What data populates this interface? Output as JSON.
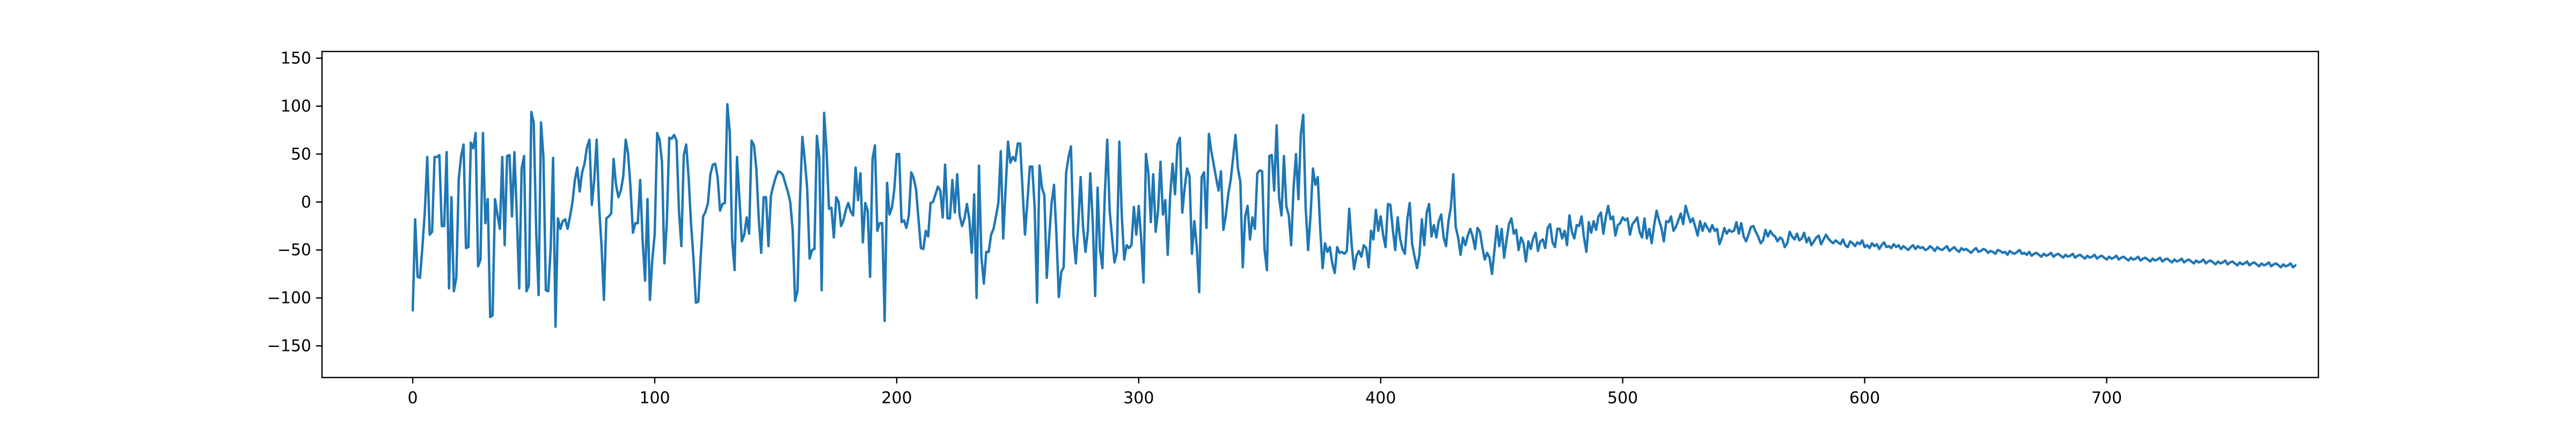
{
  "chart_data": {
    "type": "line",
    "title": "",
    "xlabel": "",
    "ylabel": "",
    "xlim": [
      -37.5,
      787.5
    ],
    "ylim": [
      -183,
      157
    ],
    "x_ticks": [
      0,
      100,
      200,
      300,
      400,
      500,
      600,
      700
    ],
    "y_ticks": [
      -150,
      -100,
      -50,
      0,
      50,
      100,
      150
    ],
    "x_tick_labels": [
      "0",
      "100",
      "200",
      "300",
      "400",
      "500",
      "600",
      "700"
    ],
    "y_tick_labels": [
      "−150",
      "−100",
      "−50",
      "0",
      "50",
      "100",
      "150"
    ],
    "grid": false,
    "legend": "none",
    "colors": {
      "series": "#1f77b4",
      "axes": "#000000",
      "background": "#ffffff"
    },
    "series": [
      {
        "values": [
          -113,
          -18,
          -78,
          -79,
          -47,
          -10,
          47,
          -34,
          -31,
          47,
          47,
          49,
          -25,
          -25,
          52,
          -90,
          5,
          -93,
          -79,
          24,
          48,
          60,
          -48,
          -47,
          62,
          56,
          72,
          -67,
          -60,
          72,
          -22,
          3,
          -120,
          -118,
          3,
          -13,
          -28,
          47,
          -45,
          48,
          49,
          -15,
          52,
          -13,
          -90,
          35,
          48,
          -93,
          -87,
          94,
          83,
          -30,
          -97,
          83,
          47,
          -92,
          -93,
          -48,
          46,
          -130,
          -17,
          -28,
          -20,
          -18,
          -28,
          -15,
          0,
          23,
          36,
          11,
          31,
          40,
          57,
          65,
          -3,
          23,
          65,
          -4,
          -45,
          -102,
          -17,
          -15,
          -12,
          45,
          18,
          5,
          12,
          27,
          65,
          50,
          15,
          -32,
          -22,
          -22,
          23,
          -41,
          -82,
          3,
          -102,
          -60,
          -33,
          72,
          65,
          42,
          -64,
          -22,
          67,
          66,
          70,
          64,
          -9,
          -46,
          49,
          60,
          26,
          -22,
          -58,
          -105,
          -104,
          -57,
          -15,
          -10,
          -1,
          29,
          39,
          40,
          26,
          -9,
          -2,
          -1,
          102,
          73,
          -40,
          -71,
          47,
          4,
          -41,
          -34,
          -16,
          -33,
          64,
          59,
          34,
          -18,
          -53,
          5,
          5,
          -46,
          6,
          17,
          26,
          32,
          31,
          28,
          19,
          11,
          0,
          -29,
          -103,
          -93,
          1,
          68,
          44,
          14,
          -59,
          -50,
          -49,
          69,
          46,
          -92,
          93,
          55,
          -7,
          -6,
          -37,
          5,
          0,
          -25,
          -19,
          -8,
          -1,
          -10,
          -14,
          36,
          2,
          30,
          -42,
          -1,
          -9,
          -78,
          45,
          59,
          -30,
          -22,
          -22,
          -124,
          20,
          -13,
          -6,
          13,
          50,
          50,
          -21,
          -19,
          -27,
          -14,
          31,
          25,
          13,
          -18,
          -48,
          -49,
          -30,
          -36,
          -1,
          0,
          8,
          16,
          12,
          -16,
          39,
          -17,
          -17,
          23,
          -11,
          29,
          -14,
          -25,
          -17,
          -2,
          -18,
          -53,
          8,
          -100,
          38,
          -57,
          -85,
          -52,
          -52,
          -34,
          -28,
          -15,
          -1,
          53,
          -38,
          14,
          63,
          41,
          47,
          43,
          61,
          61,
          13,
          -34,
          0,
          37,
          37,
          -5,
          -105,
          38,
          15,
          7,
          -79,
          -37,
          -1,
          18,
          -34,
          -99,
          -73,
          -68,
          30,
          47,
          58,
          -35,
          -64,
          -24,
          26,
          -26,
          -52,
          -30,
          30,
          -20,
          -98,
          15,
          -50,
          -69,
          9,
          65,
          -9,
          -37,
          -63,
          -52,
          63,
          -14,
          -60,
          -45,
          -48,
          -45,
          -5,
          -34,
          -4,
          -37,
          -84,
          50,
          30,
          -21,
          29,
          -31,
          -9,
          42,
          -13,
          2,
          -55,
          6,
          40,
          8,
          60,
          67,
          -11,
          15,
          35,
          27,
          -54,
          -20,
          -47,
          -94,
          26,
          31,
          -27,
          71,
          53,
          39,
          25,
          12,
          32,
          -29,
          -14,
          8,
          23,
          46,
          70,
          35,
          21,
          -68,
          -15,
          -4,
          -39,
          -16,
          -28,
          30,
          33,
          32,
          -50,
          -71,
          48,
          49,
          12,
          80,
          5,
          -14,
          48,
          -4,
          -14,
          -45,
          15,
          50,
          3,
          71,
          91,
          -6,
          -50,
          -14,
          35,
          18,
          26,
          -28,
          -69,
          -43,
          -52,
          -47,
          -64,
          -74,
          -47,
          -53,
          -52,
          -54,
          -51,
          -7,
          -44,
          -70,
          -56,
          -51,
          -57,
          -45,
          -48,
          -68,
          -30,
          -39,
          -8,
          -30,
          -15,
          -34,
          -47,
          -2,
          -3,
          -29,
          -50,
          -16,
          -38,
          -49,
          -54,
          -18,
          -1,
          -44,
          -57,
          -69,
          -55,
          -18,
          -45,
          -11,
          -2,
          -36,
          -24,
          -37,
          -20,
          -13,
          -37,
          -46,
          -20,
          -5,
          29,
          -26,
          -37,
          -55,
          -37,
          -45,
          -35,
          -28,
          -36,
          -49,
          -27,
          -31,
          -47,
          -60,
          -53,
          -58,
          -75,
          -50,
          -25,
          -46,
          -28,
          -58,
          -40,
          -23,
          -17,
          -33,
          -29,
          -50,
          -37,
          -43,
          -62,
          -41,
          -49,
          -38,
          -32,
          -51,
          -41,
          -39,
          -48,
          -27,
          -23,
          -42,
          -47,
          -28,
          -28,
          -38,
          -30,
          -45,
          -14,
          -31,
          -38,
          -24,
          -25,
          -15,
          -37,
          -52,
          -21,
          -32,
          -20,
          -29,
          -15,
          -11,
          -33,
          -16,
          -4,
          -18,
          -15,
          -35,
          -24,
          -22,
          -16,
          -19,
          -17,
          -34,
          -23,
          -20,
          -16,
          -31,
          -37,
          -17,
          -38,
          -28,
          -43,
          -24,
          -9,
          -19,
          -27,
          -41,
          -20,
          -21,
          -15,
          -30,
          -26,
          -19,
          -12,
          -23,
          -4,
          -13,
          -21,
          -17,
          -26,
          -35,
          -20,
          -30,
          -22,
          -27,
          -31,
          -24,
          -30,
          -28,
          -44,
          -37,
          -27,
          -33,
          -29,
          -31,
          -30,
          -21,
          -33,
          -22,
          -36,
          -41,
          -34,
          -26,
          -25,
          -31,
          -36,
          -43,
          -40,
          -29,
          -36,
          -30,
          -34,
          -36,
          -41,
          -37,
          -39,
          -47,
          -43,
          -31,
          -36,
          -39,
          -33,
          -40,
          -38,
          -32,
          -42,
          -37,
          -45,
          -41,
          -37,
          -35,
          -44,
          -39,
          -34,
          -38,
          -41,
          -43,
          -40,
          -42,
          -44,
          -39,
          -45,
          -47,
          -41,
          -43,
          -46,
          -42,
          -44,
          -40,
          -47,
          -45,
          -48,
          -43,
          -46,
          -44,
          -49,
          -45,
          -42,
          -47,
          -46,
          -48,
          -44,
          -47,
          -45,
          -49,
          -46,
          -48,
          -50,
          -47,
          -45,
          -49,
          -46,
          -48,
          -47,
          -50,
          -49,
          -46,
          -48,
          -51,
          -47,
          -49,
          -50,
          -48,
          -46,
          -51,
          -49,
          -47,
          -50,
          -52,
          -48,
          -50,
          -49,
          -51,
          -53,
          -50,
          -48,
          -52,
          -51,
          -49,
          -50,
          -53,
          -51,
          -52,
          -54,
          -50,
          -51,
          -53,
          -52,
          -55,
          -51,
          -53,
          -54,
          -52,
          -50,
          -54,
          -53,
          -55,
          -52,
          -56,
          -54,
          -53,
          -55,
          -57,
          -54,
          -56,
          -55,
          -53,
          -57,
          -55,
          -54,
          -56,
          -58,
          -55,
          -57,
          -56,
          -54,
          -58,
          -56,
          -55,
          -57,
          -59,
          -56,
          -58,
          -57,
          -55,
          -59,
          -57,
          -56,
          -58,
          -60,
          -57,
          -59,
          -58,
          -56,
          -60,
          -58,
          -57,
          -59,
          -61,
          -58,
          -60,
          -59,
          -57,
          -61,
          -59,
          -58,
          -60,
          -62,
          -59,
          -61,
          -60,
          -58,
          -62,
          -60,
          -59,
          -61,
          -63,
          -60,
          -62,
          -61,
          -59,
          -63,
          -61,
          -60,
          -62,
          -64,
          -61,
          -63,
          -62,
          -60,
          -64,
          -62,
          -61,
          -63,
          -65,
          -62,
          -64,
          -63,
          -61,
          -65,
          -63,
          -62,
          -64,
          -66,
          -63,
          -65,
          -64,
          -62,
          -66,
          -64,
          -63,
          -65,
          -67,
          -64,
          -66,
          -65,
          -63,
          -67,
          -65,
          -64,
          -66,
          -68,
          -65,
          -67,
          -66,
          -64,
          -68,
          -66
        ]
      }
    ]
  }
}
